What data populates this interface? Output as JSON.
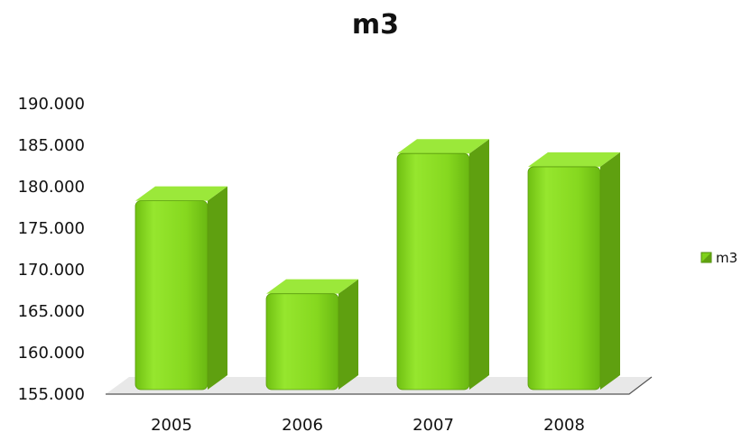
{
  "chart_data": {
    "type": "bar",
    "title": "m3",
    "categories": [
      "2005",
      "2006",
      "2007",
      "2008"
    ],
    "series": [
      {
        "name": "m3",
        "values": [
          178300,
          167100,
          184000,
          182400
        ]
      }
    ],
    "ylim": [
      155000,
      190000
    ],
    "yticks": [
      "155.000",
      "160.000",
      "165.000",
      "170.000",
      "175.000",
      "180.000",
      "185.000",
      "190.000"
    ],
    "xlabel": "",
    "ylabel": "",
    "grid": false,
    "legend": "right",
    "colors": {
      "bar_front": "#7fd11b",
      "bar_side": "#5fa010",
      "bar_top": "#9be83a",
      "floor": "#e8e8e8"
    }
  }
}
